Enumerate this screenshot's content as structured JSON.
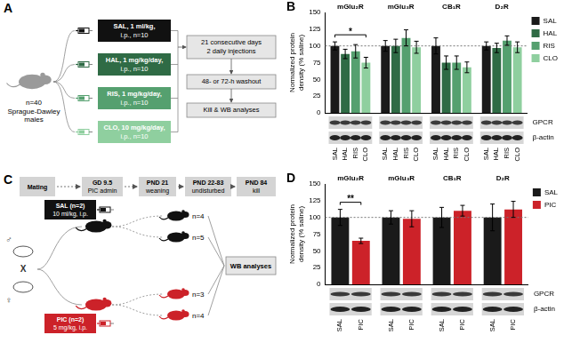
{
  "chart_data": [
    {
      "type": "bar",
      "panel": "B",
      "y_label": [
        "Normalized protein",
        "density (% saline)"
      ],
      "categories": [
        "mGlu₂R",
        "mGlu₃R",
        "CB₁R",
        "D₂R"
      ],
      "series": [
        {
          "name": "SAL",
          "color": "#1a1a1a",
          "values": [
            100,
            100,
            100,
            100
          ],
          "errors": [
            6,
            8,
            12,
            6
          ]
        },
        {
          "name": "HAL",
          "color": "#2f6b45",
          "values": [
            88,
            100,
            75,
            97
          ],
          "errors": [
            7,
            10,
            10,
            7
          ]
        },
        {
          "name": "RIS",
          "color": "#55a06f",
          "values": [
            92,
            112,
            75,
            108
          ],
          "errors": [
            10,
            12,
            10,
            7
          ]
        },
        {
          "name": "CLO",
          "color": "#8fcf9f",
          "values": [
            75,
            98,
            68,
            98
          ],
          "errors": [
            8,
            9,
            8,
            8
          ]
        }
      ],
      "ylim": [
        0,
        150
      ],
      "yticks": [
        0,
        25,
        50,
        75,
        100,
        125,
        150
      ],
      "reference_line": 100,
      "significance": [
        {
          "category": "mGlu₂R",
          "from": "SAL",
          "to": "CLO",
          "label": "*"
        }
      ],
      "blot_labels": [
        "GPCR",
        "β-actin"
      ],
      "legend": "right",
      "grid": false
    },
    {
      "type": "bar",
      "panel": "D",
      "y_label": [
        "Normalized protein",
        "density (% saline)"
      ],
      "categories": [
        "mGlu₂R",
        "mGlu₃R",
        "CB₁R",
        "D₂R"
      ],
      "series": [
        {
          "name": "SAL",
          "color": "#1a1a1a",
          "values": [
            100,
            100,
            100,
            100
          ],
          "errors": [
            12,
            10,
            15,
            20
          ]
        },
        {
          "name": "PIC",
          "color": "#cc2229",
          "values": [
            65,
            98,
            110,
            112
          ],
          "errors": [
            4,
            12,
            8,
            12
          ]
        }
      ],
      "ylim": [
        0,
        150
      ],
      "yticks": [
        0,
        25,
        50,
        75,
        100,
        125,
        150
      ],
      "reference_line": 100,
      "significance": [
        {
          "category": "mGlu₂R",
          "from": "SAL",
          "to": "PIC",
          "label": "**"
        }
      ],
      "blot_labels": [
        "GPCR",
        "β-actin"
      ],
      "legend": "right",
      "grid": false
    }
  ],
  "diagram_A": {
    "panel": "A",
    "subjects": {
      "count": "n=40",
      "lines": [
        "Sprague-Dawley",
        "males"
      ]
    },
    "groups": [
      {
        "lines": [
          "SAL, 1 ml/kg,",
          "i.p., n=10"
        ],
        "color": "#111111"
      },
      {
        "lines": [
          "HAL, 1 mg/kg/day,",
          "i.p., n=10"
        ],
        "color": "#2f6b45"
      },
      {
        "lines": [
          "RIS, 1 mg/kg/day,",
          "i.p., n=10"
        ],
        "color": "#55a06f"
      },
      {
        "lines": [
          "CLO, 10 mg/kg/day,",
          "i.p., n=10"
        ],
        "color": "#8fcf9f"
      }
    ],
    "steps": [
      [
        "21 consecutive days",
        "2 daily injections"
      ],
      [
        "48- or 72-h washout"
      ],
      [
        "Kill & WB analyses"
      ]
    ]
  },
  "diagram_C": {
    "panel": "C",
    "timeline": [
      [
        "Mating"
      ],
      [
        "GD 9.5",
        "PIC admin"
      ],
      [
        "PND 21",
        "weaning"
      ],
      [
        "PND 22-83",
        "undisturbed"
      ],
      [
        "PND 84",
        "kill"
      ]
    ],
    "parents": [
      "♂",
      "X",
      "♀"
    ],
    "treatments": [
      {
        "lines": [
          "SAL (n=2)",
          "10 ml/kg, i.p."
        ],
        "color": "#111111",
        "offspring": [
          "n=4",
          "n=5"
        ]
      },
      {
        "lines": [
          "PIC (n=2)",
          "5 mg/kg, i.p."
        ],
        "color": "#cc2229",
        "offspring": [
          "n=3",
          "n=4"
        ]
      }
    ],
    "endpoint": "WB analyses"
  }
}
